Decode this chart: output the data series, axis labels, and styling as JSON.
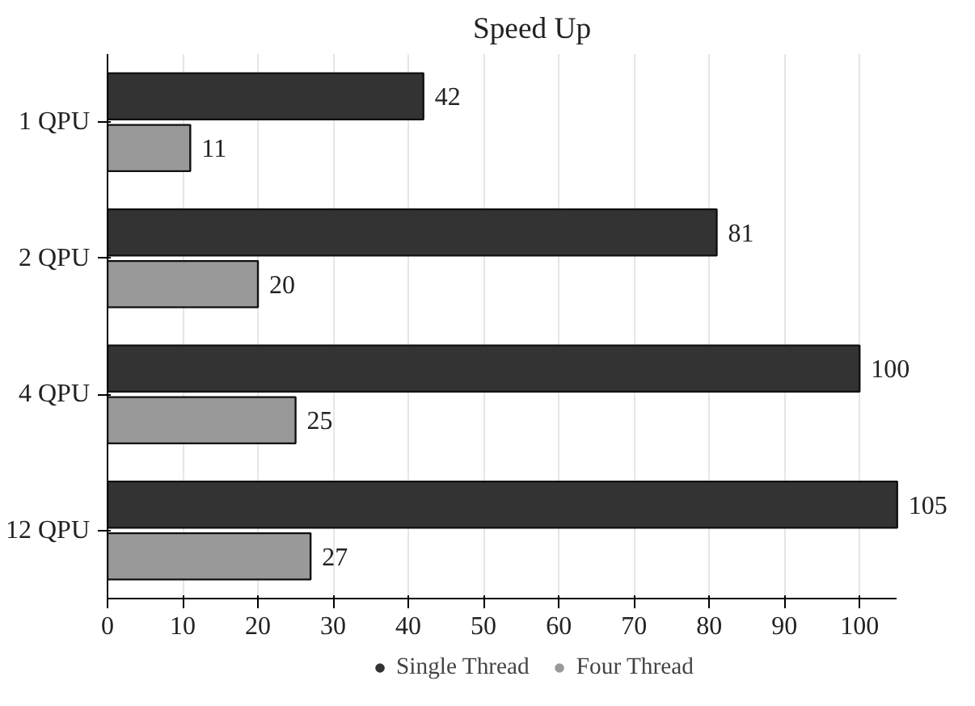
{
  "chart_data": {
    "type": "bar",
    "orientation": "horizontal",
    "title": "Speed Up",
    "categories": [
      "1 QPU",
      "2 QPU",
      "4 QPU",
      "12 QPU"
    ],
    "series": [
      {
        "name": "Single Thread",
        "color": "#333333",
        "values": [
          42,
          81,
          100,
          105
        ]
      },
      {
        "name": "Four Thread",
        "color": "#999999",
        "values": [
          11,
          20,
          25,
          27
        ]
      }
    ],
    "xlim": [
      0,
      105
    ],
    "xticks": [
      0,
      10,
      20,
      30,
      40,
      50,
      60,
      70,
      80,
      90,
      100
    ],
    "grid": "x",
    "legend": "bottom",
    "data_labels": true
  }
}
